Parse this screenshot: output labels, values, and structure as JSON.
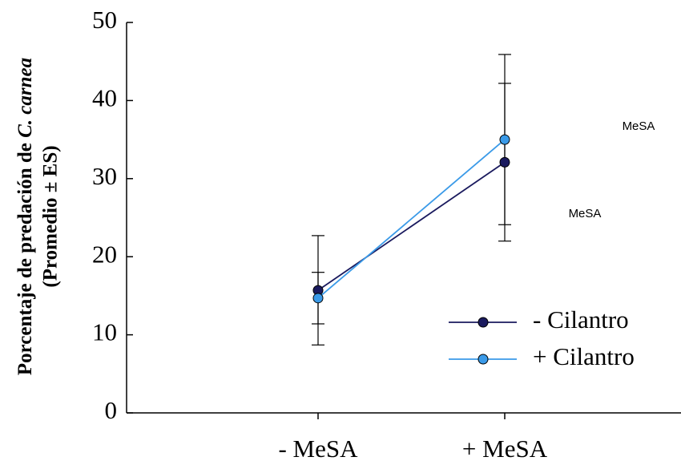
{
  "chart_data": {
    "type": "line",
    "y_label_line1": "Porcentaje de predación de",
    "y_label_italic": "C. carnea",
    "y_label_line2": "(Promedio ± ES)",
    "categories": [
      "- MeSA",
      "+ MeSA"
    ],
    "series": [
      {
        "name": "- Cilantro",
        "color": "#1a1a5e",
        "values": [
          15.7,
          32.1
        ],
        "errors": [
          7.0,
          10.1
        ]
      },
      {
        "name": "+ Cilantro",
        "color": "#3a9ae8",
        "values": [
          14.7,
          35.0
        ],
        "errors": [
          3.3,
          10.9
        ]
      }
    ],
    "annotations": [
      "MeSA",
      "MeSA"
    ],
    "ylim": [
      0,
      50
    ],
    "yticks": [
      0,
      10,
      20,
      30,
      40,
      50
    ],
    "legend": "lower-right"
  }
}
